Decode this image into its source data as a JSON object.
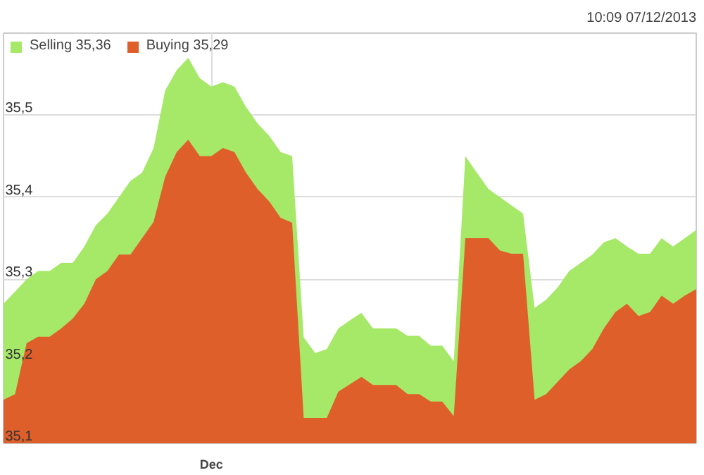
{
  "chart_data": {
    "type": "area",
    "annotations": [
      "10:09 07/12/2013"
    ],
    "categories": [
      null,
      null,
      null,
      null,
      null,
      null,
      null,
      null,
      null,
      null,
      null,
      null,
      null,
      null,
      null,
      null,
      null,
      null,
      "Dec",
      null,
      null,
      null,
      null,
      null,
      null,
      null,
      null,
      null,
      null,
      null,
      null,
      null,
      null,
      null,
      null,
      null,
      null,
      null,
      null,
      null,
      null,
      null,
      null,
      null,
      null,
      null,
      null,
      null,
      null,
      null,
      null,
      null,
      null,
      null,
      null,
      null,
      null,
      null,
      null,
      null,
      null
    ],
    "series": [
      {
        "name": "Selling 35,36",
        "color": "#a6e867",
        "values": [
          35.27,
          35.285,
          35.3,
          35.31,
          35.31,
          35.32,
          35.32,
          35.34,
          35.366,
          35.38,
          35.4,
          35.42,
          35.43,
          35.46,
          35.53,
          35.555,
          35.57,
          35.545,
          35.535,
          35.54,
          35.535,
          35.51,
          35.49,
          35.475,
          35.455,
          35.45,
          35.229,
          35.21,
          35.215,
          35.24,
          35.25,
          35.259,
          35.24,
          35.24,
          35.24,
          35.231,
          35.231,
          35.219,
          35.219,
          35.2,
          35.45,
          35.43,
          35.41,
          35.4,
          35.39,
          35.38,
          35.265,
          35.275,
          35.29,
          35.31,
          35.32,
          35.33,
          35.345,
          35.35,
          35.34,
          35.331,
          35.331,
          35.35,
          35.34,
          35.35,
          35.36
        ]
      },
      {
        "name": "Buying 35,29",
        "color": "#df5f2a",
        "values": [
          35.153,
          35.16,
          35.222,
          35.23,
          35.23,
          35.24,
          35.252,
          35.27,
          35.3,
          35.31,
          35.33,
          35.33,
          35.35,
          35.37,
          35.425,
          35.455,
          35.47,
          35.45,
          35.45,
          35.46,
          35.455,
          35.43,
          35.41,
          35.395,
          35.375,
          35.369,
          35.131,
          35.131,
          35.131,
          35.163,
          35.172,
          35.181,
          35.171,
          35.171,
          35.171,
          35.16,
          35.16,
          35.151,
          35.151,
          35.133,
          35.35,
          35.35,
          35.35,
          35.335,
          35.331,
          35.331,
          35.153,
          35.16,
          35.175,
          35.19,
          35.2,
          35.215,
          35.24,
          35.26,
          35.27,
          35.255,
          35.26,
          35.28,
          35.27,
          35.28,
          35.288
        ]
      }
    ],
    "ylim": [
      35.1,
      35.6
    ],
    "yticks": [
      {
        "value": 35.1,
        "label": "35,1"
      },
      {
        "value": 35.2,
        "label": "35,2"
      },
      {
        "value": 35.3,
        "label": "35,3"
      },
      {
        "value": 35.4,
        "label": "35,4"
      },
      {
        "value": 35.5,
        "label": "35,5"
      }
    ],
    "grid": true,
    "legend": "top left"
  }
}
